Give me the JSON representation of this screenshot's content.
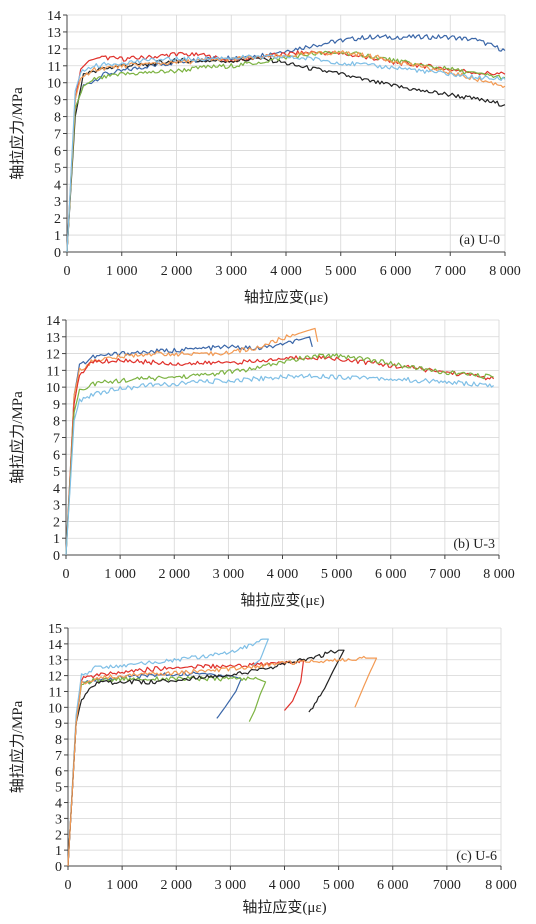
{
  "chart_data": [
    {
      "type": "line",
      "panel_label": "(a) U-0",
      "xlabel": "轴拉应变(με)",
      "ylabel": "轴拉应力/MPa",
      "xlim": [
        0,
        8000
      ],
      "ylim": [
        0,
        14
      ],
      "xticks": [
        "0",
        "1 000",
        "2 000",
        "3 000",
        "4 000",
        "5 000",
        "6 000",
        "7 000",
        "8 000"
      ],
      "yticks": [
        "0",
        "1",
        "2",
        "3",
        "4",
        "5",
        "6",
        "7",
        "8",
        "9",
        "10",
        "11",
        "12",
        "13",
        "14"
      ],
      "grid": true,
      "series": [
        {
          "color": "#3a66a8",
          "x": [
            0,
            150,
            300,
            700,
            1500,
            2500,
            3500,
            4000,
            4500,
            5000,
            5500,
            6000,
            6500,
            7000,
            7500,
            8000
          ],
          "y": [
            0,
            8.5,
            9.8,
            10.5,
            11.0,
            11.4,
            11.6,
            11.9,
            12.2,
            12.5,
            12.7,
            12.7,
            12.7,
            12.7,
            12.5,
            11.9
          ]
        },
        {
          "color": "#e0312b",
          "x": [
            0,
            150,
            250,
            400,
            600,
            1000,
            1500,
            2000,
            2500,
            3000,
            3500,
            4000,
            4500,
            5000,
            5500,
            6000,
            6500,
            7000,
            7500,
            8000
          ],
          "y": [
            0,
            9.0,
            10.8,
            11.3,
            11.5,
            11.4,
            11.5,
            11.7,
            11.6,
            11.3,
            11.5,
            11.7,
            11.8,
            11.7,
            11.5,
            11.2,
            11.0,
            10.8,
            10.6,
            10.5
          ]
        },
        {
          "color": "#222222",
          "x": [
            0,
            150,
            300,
            600,
            1000,
            1500,
            2000,
            2500,
            3000,
            3500,
            3800,
            4200,
            5000,
            5500,
            6000,
            6500,
            7000,
            7500,
            8000
          ],
          "y": [
            0,
            8.0,
            10.5,
            10.8,
            11.0,
            11.1,
            11.3,
            11.3,
            11.3,
            11.4,
            11.3,
            11.0,
            10.5,
            10.1,
            9.8,
            9.5,
            9.3,
            9.0,
            8.7
          ]
        },
        {
          "color": "#7cb342",
          "x": [
            0,
            150,
            300,
            500,
            1000,
            1500,
            2000,
            2500,
            3000,
            3500,
            4000,
            4500,
            5000,
            5500,
            6000,
            6500,
            7000,
            7500,
            8000
          ],
          "y": [
            0,
            8.5,
            9.8,
            10.2,
            10.5,
            10.6,
            10.7,
            10.9,
            11.0,
            11.2,
            11.5,
            11.7,
            11.8,
            11.6,
            11.3,
            11.0,
            10.8,
            10.5,
            10.3
          ]
        },
        {
          "color": "#f39a53",
          "x": [
            0,
            150,
            250,
            500,
            1000,
            1500,
            2000,
            2500,
            3000,
            3500,
            4000,
            4500,
            5000,
            5500,
            6000,
            6500,
            7000,
            7500,
            8000
          ],
          "y": [
            0,
            9.0,
            10.3,
            10.8,
            11.0,
            11.1,
            11.2,
            11.3,
            11.4,
            11.5,
            11.6,
            11.7,
            11.8,
            11.6,
            11.3,
            10.9,
            10.6,
            10.2,
            9.8
          ]
        },
        {
          "color": "#7fbfe6",
          "x": [
            0,
            150,
            250,
            500,
            1000,
            1500,
            2000,
            2500,
            3000,
            3500,
            4000,
            4500,
            5000,
            5500,
            6000,
            6500,
            7000,
            7500,
            8000
          ],
          "y": [
            0,
            9.5,
            10.6,
            11.0,
            11.2,
            11.3,
            11.4,
            11.4,
            11.5,
            11.5,
            11.5,
            11.4,
            11.2,
            11.0,
            10.9,
            10.7,
            10.5,
            10.3,
            10.2
          ]
        }
      ]
    },
    {
      "type": "line",
      "panel_label": "(b) U-3",
      "xlabel": "轴拉应变(με)",
      "ylabel": "轴拉应力/MPa",
      "xlim": [
        0,
        8000
      ],
      "ylim": [
        0,
        14
      ],
      "xticks": [
        "0",
        "1 000",
        "2 000",
        "3 000",
        "4 000",
        "5 000",
        "6 000",
        "7 000",
        "8 000"
      ],
      "yticks": [
        "0",
        "1",
        "2",
        "3",
        "4",
        "5",
        "6",
        "7",
        "8",
        "9",
        "10",
        "11",
        "12",
        "13",
        "14"
      ],
      "grid": true,
      "series": [
        {
          "color": "#3a66a8",
          "x": [
            0,
            150,
            250,
            500,
            1000,
            1500,
            2000,
            2500,
            3000,
            3500,
            4000,
            4300,
            4500,
            4550
          ],
          "y": [
            0,
            9.5,
            11.3,
            11.8,
            12.0,
            12.1,
            12.2,
            12.3,
            12.4,
            12.3,
            12.5,
            12.8,
            13.0,
            12.4
          ]
        },
        {
          "color": "#f39a53",
          "x": [
            0,
            150,
            250,
            500,
            1000,
            1500,
            2000,
            2500,
            3000,
            3500,
            4000,
            4300,
            4500,
            4600,
            4650
          ],
          "y": [
            0,
            9.5,
            11.0,
            11.6,
            11.8,
            12.0,
            12.0,
            11.9,
            12.1,
            12.3,
            12.9,
            13.2,
            13.4,
            13.5,
            12.7
          ]
        },
        {
          "color": "#e0312b",
          "x": [
            0,
            150,
            250,
            500,
            1000,
            1500,
            2000,
            2500,
            3000,
            3500,
            4000,
            4500,
            5000,
            5500,
            6000,
            6500,
            7000,
            7500,
            7900
          ],
          "y": [
            0,
            9.0,
            10.8,
            11.5,
            11.6,
            11.5,
            11.4,
            11.4,
            11.5,
            11.5,
            11.7,
            11.8,
            11.7,
            11.5,
            11.3,
            11.1,
            10.9,
            10.7,
            10.5
          ]
        },
        {
          "color": "#7cb342",
          "x": [
            0,
            150,
            250,
            500,
            1000,
            1500,
            2000,
            2500,
            3000,
            3500,
            4000,
            4500,
            5000,
            5500,
            6000,
            6500,
            7000,
            7500,
            7900
          ],
          "y": [
            0,
            8.5,
            9.8,
            10.2,
            10.4,
            10.5,
            10.6,
            10.7,
            10.9,
            11.1,
            11.5,
            11.8,
            11.9,
            11.7,
            11.4,
            11.1,
            10.9,
            10.7,
            10.6
          ]
        },
        {
          "color": "#7fbfe6",
          "x": [
            0,
            150,
            250,
            500,
            1000,
            1500,
            2000,
            2500,
            3000,
            3500,
            4000,
            4500,
            5000,
            5500,
            6000,
            6500,
            7000,
            7500,
            7900
          ],
          "y": [
            0,
            8.0,
            9.2,
            9.6,
            9.9,
            10.1,
            10.2,
            10.3,
            10.4,
            10.5,
            10.6,
            10.7,
            10.6,
            10.6,
            10.5,
            10.4,
            10.3,
            10.2,
            10.1
          ]
        }
      ]
    },
    {
      "type": "line",
      "panel_label": "(c) U-6",
      "xlabel": "轴拉应变(με)",
      "ylabel": "轴拉应力/MPa",
      "xlim": [
        0,
        8000
      ],
      "ylim": [
        0,
        15
      ],
      "xticks": [
        "0",
        "1 000",
        "2 000",
        "3 000",
        "4 000",
        "5 000",
        "6 000",
        "7000",
        "8 000"
      ],
      "yticks": [
        "0",
        "1",
        "2",
        "3",
        "4",
        "5",
        "6",
        "7",
        "8",
        "9",
        "10",
        "11",
        "12",
        "13",
        "14",
        "15"
      ],
      "grid": true,
      "series": [
        {
          "color": "#3a66a8",
          "x": [
            0,
            150,
            250,
            500,
            1000,
            1500,
            2000,
            2500,
            3000,
            3200,
            3100,
            2900,
            2750
          ],
          "y": [
            0,
            9.0,
            11.5,
            11.7,
            11.9,
            12.0,
            12.1,
            12.1,
            12.0,
            11.8,
            11.0,
            10.0,
            9.3
          ]
        },
        {
          "color": "#7cb342",
          "x": [
            0,
            150,
            250,
            500,
            1000,
            1500,
            2000,
            2500,
            3000,
            3500,
            3650,
            3550,
            3450,
            3350
          ],
          "y": [
            0,
            9.0,
            11.5,
            11.7,
            11.8,
            11.8,
            11.8,
            11.8,
            11.8,
            11.8,
            11.6,
            10.8,
            9.8,
            9.1
          ]
        },
        {
          "color": "#e0312b",
          "x": [
            0,
            150,
            250,
            500,
            1000,
            1500,
            2000,
            2500,
            3000,
            3500,
            4000,
            4350,
            4300,
            4150,
            4000
          ],
          "y": [
            0,
            9.0,
            11.8,
            12.0,
            12.2,
            12.4,
            12.5,
            12.6,
            12.6,
            12.7,
            12.8,
            12.9,
            11.6,
            10.4,
            9.8
          ]
        },
        {
          "color": "#7fbfe6",
          "x": [
            0,
            150,
            250,
            500,
            1000,
            1500,
            2000,
            2500,
            3000,
            3300,
            3600,
            3700,
            3550,
            3400
          ],
          "y": [
            0,
            9.5,
            12.0,
            12.5,
            12.6,
            12.8,
            13.0,
            13.2,
            13.5,
            13.8,
            14.3,
            14.3,
            13.0,
            12.6
          ]
        },
        {
          "color": "#222222",
          "x": [
            0,
            150,
            250,
            500,
            1000,
            1500,
            2000,
            2500,
            3000,
            3500,
            4000,
            4500,
            5000,
            5100,
            4900,
            4700,
            4450
          ],
          "y": [
            0,
            9.0,
            10.5,
            11.5,
            11.6,
            11.6,
            11.7,
            11.9,
            12.1,
            12.3,
            12.7,
            13.1,
            13.6,
            13.6,
            12.3,
            10.9,
            9.7
          ]
        },
        {
          "color": "#f39a53",
          "x": [
            0,
            150,
            250,
            500,
            1000,
            1500,
            2000,
            2500,
            3000,
            3500,
            4000,
            4500,
            5000,
            5500,
            5700,
            5550,
            5400,
            5300
          ],
          "y": [
            0,
            9.0,
            11.5,
            11.8,
            12.0,
            12.1,
            12.2,
            12.3,
            12.4,
            12.6,
            12.8,
            12.9,
            13.0,
            13.1,
            13.1,
            12.0,
            10.8,
            10.0
          ]
        }
      ]
    }
  ]
}
